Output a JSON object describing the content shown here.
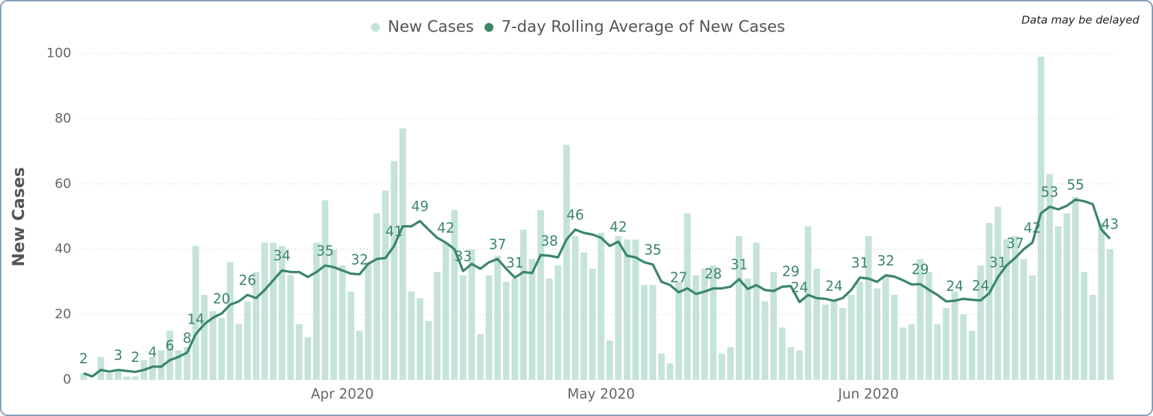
{
  "chart_data": {
    "type": "bar_line",
    "annotation": "Data may be delayed",
    "y_axis_label": "New Cases",
    "categories": [
      null,
      null,
      null,
      null,
      null,
      null,
      null,
      null,
      null,
      null,
      null,
      null,
      null,
      null,
      null,
      null,
      null,
      null,
      null,
      null,
      null,
      null,
      null,
      null,
      null,
      null,
      null,
      null,
      null,
      null,
      "Apr 2020",
      null,
      null,
      null,
      null,
      null,
      null,
      null,
      null,
      null,
      null,
      null,
      null,
      null,
      null,
      null,
      null,
      null,
      null,
      null,
      null,
      null,
      null,
      null,
      null,
      null,
      null,
      null,
      null,
      null,
      "May 2020",
      null,
      null,
      null,
      null,
      null,
      null,
      null,
      null,
      null,
      null,
      null,
      null,
      null,
      null,
      null,
      null,
      null,
      null,
      null,
      null,
      null,
      null,
      null,
      null,
      null,
      null,
      null,
      null,
      null,
      null,
      "Jun 2020",
      null,
      null,
      null,
      null,
      null,
      null,
      null,
      null,
      null,
      null,
      null,
      null,
      null,
      null,
      null,
      null,
      null,
      null,
      null,
      null,
      null,
      null,
      null,
      null,
      null,
      null,
      null,
      null
    ],
    "series": [
      {
        "name": "New Cases",
        "kind": "bar",
        "color": "#c5e3d9",
        "values": [
          2,
          0,
          7,
          2,
          3,
          1,
          1,
          6,
          7,
          9,
          15,
          9,
          10,
          41,
          26,
          21,
          19,
          36,
          17,
          24,
          33,
          42,
          42,
          41,
          32,
          17,
          13,
          42,
          55,
          40,
          35,
          27,
          15,
          36,
          51,
          58,
          67,
          77,
          27,
          25,
          18,
          33,
          42,
          52,
          32,
          40,
          14,
          32,
          38,
          30,
          31,
          46,
          37,
          52,
          31,
          35,
          72,
          44,
          39,
          34,
          45,
          12,
          44,
          43,
          43,
          29,
          29,
          8,
          5,
          30,
          51,
          32,
          34,
          35,
          8,
          10,
          44,
          31,
          42,
          24,
          33,
          16,
          10,
          9,
          47,
          34,
          23,
          24,
          22,
          26,
          30,
          44,
          28,
          32,
          26,
          16,
          17,
          37,
          33,
          17,
          22,
          27,
          20,
          15,
          35,
          48,
          53,
          43,
          44,
          37,
          32,
          99,
          63,
          47,
          51,
          56,
          33,
          26,
          48,
          40
        ]
      },
      {
        "name": "7-day Rolling Average of New Cases",
        "kind": "line",
        "color": "#3b8767",
        "values": [
          2,
          1,
          3,
          2.5,
          3,
          2.7,
          2.4,
          3,
          4,
          4,
          6,
          7,
          8.3,
          14,
          17,
          19,
          20.3,
          23,
          24,
          26,
          25,
          27.5,
          30.5,
          33.5,
          33,
          33,
          31.5,
          33,
          35,
          34.5,
          33.5,
          32.5,
          32.3,
          35.5,
          37,
          37.3,
          41,
          47,
          47,
          48.6,
          46,
          43.5,
          42,
          40,
          33.3,
          35.5,
          34,
          36,
          37,
          34,
          31.3,
          33,
          32.7,
          38.2,
          38,
          37.5,
          43,
          46,
          45,
          44.5,
          43.5,
          41,
          42.3,
          38,
          37.5,
          36,
          35.3,
          30,
          29,
          26.8,
          28,
          26.3,
          27,
          28,
          28,
          28.5,
          30.8,
          27.8,
          29,
          27.5,
          27.2,
          28.5,
          28.7,
          23.8,
          26,
          25,
          24.8,
          24.2,
          25,
          27.5,
          31.3,
          31,
          30,
          32,
          31.6,
          30.5,
          29.2,
          29.3,
          27.6,
          26,
          24,
          24.2,
          24.8,
          24.5,
          24.3,
          26.5,
          31.4,
          35,
          37.3,
          40,
          42,
          51,
          53,
          52.2,
          53.3,
          55.2,
          54.7,
          53.8,
          46,
          43.2
        ],
        "value_labels": [
          "2",
          null,
          null,
          null,
          "3",
          null,
          "2",
          null,
          "4",
          null,
          "6",
          null,
          "8",
          "14",
          null,
          null,
          "20",
          null,
          null,
          "26",
          null,
          null,
          null,
          "34",
          null,
          null,
          null,
          null,
          "35",
          null,
          null,
          null,
          "32",
          null,
          null,
          null,
          "41",
          null,
          null,
          "49",
          null,
          null,
          "42",
          null,
          "33",
          null,
          null,
          null,
          "37",
          null,
          "31",
          null,
          null,
          null,
          "38",
          null,
          null,
          "46",
          null,
          null,
          null,
          null,
          "42",
          null,
          null,
          null,
          "35",
          null,
          null,
          "27",
          null,
          null,
          null,
          "28",
          null,
          null,
          "31",
          null,
          null,
          null,
          null,
          null,
          "29",
          "24",
          null,
          null,
          null,
          "24",
          null,
          null,
          "31",
          null,
          null,
          "32",
          null,
          null,
          null,
          "29",
          null,
          null,
          null,
          "24",
          null,
          null,
          "24",
          null,
          "31",
          null,
          "37",
          null,
          "42",
          null,
          "53",
          null,
          null,
          "55",
          null,
          null,
          null,
          "43"
        ]
      }
    ],
    "ylim": [
      0,
      100
    ],
    "yticks": [
      0,
      20,
      40,
      60,
      80,
      100
    ],
    "grid": true,
    "legend": "top"
  }
}
